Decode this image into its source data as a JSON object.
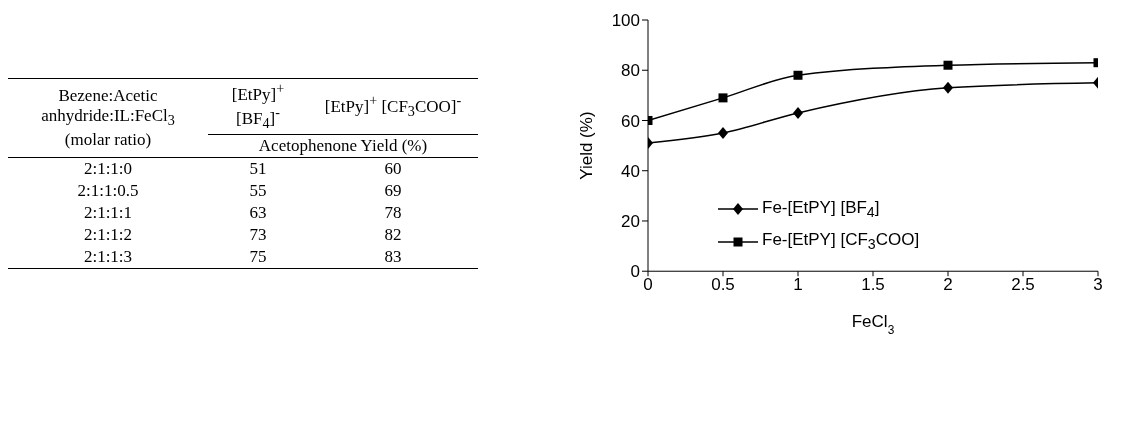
{
  "chart_data": [
    {
      "type": "other",
      "annotations": [
        "Bezene:Acetic anhydride:IL:FeCl$_{3}$ (molar ratio)",
        "[EtPy]$^{+}$ [BF$_{4}$]$^{-}$",
        "[EtPy]$^{+}$ [CF$_{3}$COO]$^{-}$",
        "Acetophenone Yield (%)",
        "2:1:1:0",
        "51",
        "60",
        "2:1:1:0.5",
        "55",
        "69",
        "2:1:1:1",
        "63",
        "78",
        "2:1:1:2",
        "73",
        "82",
        "2:1:1:3",
        "75",
        "83"
      ]
    },
    {
      "type": "line",
      "xlabel": "FeCl$_{3}$",
      "ylabel": "Yield (%)",
      "x": [
        0,
        0.5,
        1,
        2,
        3
      ],
      "series": [
        {
          "name": "Fe-[EtPY] [BF$_{4}$]",
          "color": "#000000",
          "marker": "diamond",
          "values": [
            51,
            55,
            63,
            73,
            75
          ]
        },
        {
          "name": "Fe-[EtPY] [CF$_{3}$COO]",
          "color": "#000000",
          "marker": "square",
          "values": [
            60,
            69,
            78,
            82,
            83
          ]
        }
      ],
      "xlim": [
        0,
        3
      ],
      "xticks": [
        0,
        0.5,
        1,
        1.5,
        2,
        2.5,
        3
      ],
      "ylim": [
        0,
        100
      ],
      "yticks": [
        0,
        20,
        40,
        60,
        80,
        100
      ],
      "legend": "bottom",
      "grid": false
    }
  ]
}
